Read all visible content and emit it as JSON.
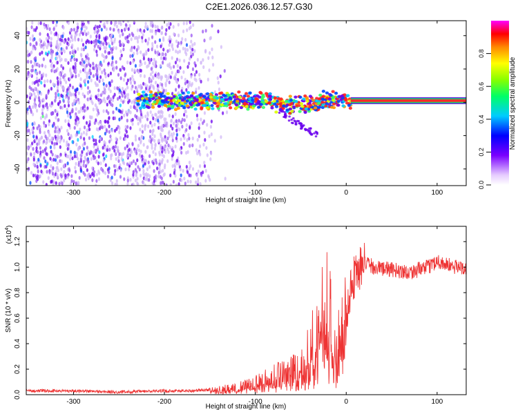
{
  "title": "C2E1.2026.036.12.57.G30",
  "colors": {
    "snr_line": "#ee3333",
    "signal_band": "#ff2a2a",
    "scatter_main": "#7a22ee",
    "scatter_light": "#c9a6f5"
  },
  "chart_data": [
    {
      "type": "heatmap",
      "title": "C2E1.2026.036.12.57.G30",
      "xlabel": "Height of straight line (km)",
      "ylabel": "Frequency (Hz)",
      "xlim": [
        -352,
        132
      ],
      "ylim": [
        -50,
        49
      ],
      "xticks": [
        -300,
        -200,
        -100,
        0,
        100
      ],
      "xtick_labels": [
        "-300",
        "-200",
        "-100",
        "0",
        "100"
      ],
      "yticks": [
        -40,
        -20,
        0,
        20,
        40
      ],
      "ytick_labels": [
        "-40",
        "-20",
        "0",
        "20",
        "40"
      ],
      "colorbar": {
        "label": "Normalized spectral amplitude",
        "range": [
          0,
          1
        ],
        "ticks": [
          0.0,
          0.2,
          0.4,
          0.6,
          0.8
        ],
        "tick_labels": [
          "0.0",
          "0.2",
          "0.4",
          "0.6",
          "0.8"
        ],
        "colormap": "rainbow"
      },
      "features": {
        "signal_frequency_hz": 1,
        "signal_onset_km": -230,
        "coherent_from_km": 5,
        "noise_extent_km": -130
      }
    },
    {
      "type": "line",
      "xlabel": "Height of straight line (km)",
      "ylabel": "SNR (10 * v/v)",
      "y_scale_label": "(x10",
      "y_scale_exp": "4",
      "xlim": [
        -352,
        132
      ],
      "ylim": [
        0,
        1.32
      ],
      "xticks": [
        -300,
        -200,
        -100,
        0,
        100
      ],
      "xtick_labels": [
        "-300",
        "-200",
        "-100",
        "0",
        "100"
      ],
      "yticks": [
        0.0,
        0.2,
        0.4,
        0.6,
        0.8,
        1.0,
        1.2
      ],
      "ytick_labels": [
        "0.0",
        "0.2",
        "0.4",
        "0.6",
        "0.8",
        "1.0",
        "1.2"
      ],
      "series": [
        {
          "name": "SNR",
          "x": [
            -352,
            -300,
            -250,
            -200,
            -170,
            -150,
            -120,
            -100,
            -80,
            -60,
            -50,
            -40,
            -30,
            -25,
            -20,
            -15,
            -10,
            -5,
            0,
            5,
            10,
            20,
            25,
            30,
            50,
            70,
            90,
            100,
            110,
            120,
            132
          ],
          "values": [
            0.03,
            0.03,
            0.02,
            0.03,
            0.03,
            0.04,
            0.06,
            0.1,
            0.15,
            0.22,
            0.28,
            0.38,
            0.55,
            0.72,
            0.8,
            0.6,
            0.45,
            0.5,
            0.65,
            0.85,
            0.95,
            1.03,
            1.02,
            1.0,
            0.98,
            0.96,
            1.0,
            1.05,
            1.02,
            1.0,
            1.0
          ]
        }
      ]
    }
  ]
}
